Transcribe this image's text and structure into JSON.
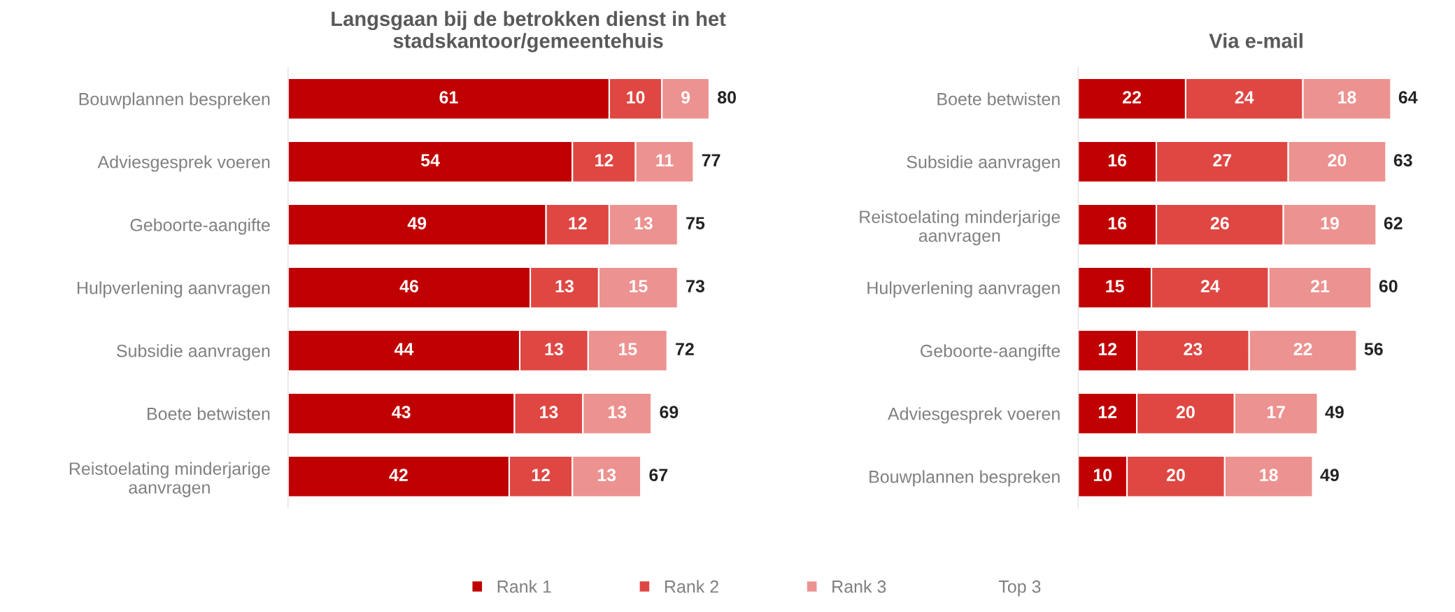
{
  "chart_data": [
    {
      "type": "bar",
      "orientation": "horizontal",
      "stacked": true,
      "title": "Langsgaan bij de betrokken dienst in het stadskantoor/gemeentehuis",
      "categories": [
        "Bouwplannen bespreken",
        "Adviesgesprek voeren",
        "Geboorte-aangifte",
        "Hulpverlening aanvragen",
        "Subsidie aanvragen",
        "Boete betwisten",
        "Reistoelating minderjarige aanvragen"
      ],
      "series": [
        {
          "name": "Rank 1",
          "color": "#c00000",
          "values": [
            61,
            54,
            49,
            46,
            44,
            43,
            42
          ]
        },
        {
          "name": "Rank 2",
          "color": "#df4743",
          "values": [
            10,
            12,
            12,
            13,
            13,
            13,
            12
          ]
        },
        {
          "name": "Rank 3",
          "color": "#ec9290",
          "values": [
            9,
            11,
            13,
            15,
            15,
            13,
            13
          ]
        }
      ],
      "totals": [
        "80",
        "77",
        "75",
        "73",
        "72",
        "69",
        "67"
      ],
      "data_labels": true,
      "tick_labels": "y",
      "grid": false,
      "legend": "bottom",
      "annotations": [
        "Top 3"
      ]
    },
    {
      "type": "bar",
      "orientation": "horizontal",
      "stacked": true,
      "title": "Via e-mail",
      "categories": [
        "Boete betwisten",
        "Subsidie aanvragen",
        "Reistoelating minderjarige aanvragen",
        "Hulpverlening aanvragen",
        "Geboorte-aangifte",
        "Adviesgesprek voeren",
        "Bouwplannen bespreken"
      ],
      "series": [
        {
          "color": "#c00000",
          "values": [
            22,
            16,
            16,
            15,
            12,
            12,
            10
          ]
        },
        {
          "color": "#df4743",
          "values": [
            24,
            27,
            26,
            24,
            23,
            20,
            20
          ]
        },
        {
          "color": "#ec9290",
          "values": [
            18,
            20,
            19,
            21,
            22,
            17,
            18
          ]
        }
      ],
      "totals": [
        "64",
        "63",
        "62",
        "60",
        "56",
        "49",
        "49"
      ],
      "data_labels": true,
      "tick_labels": "y",
      "grid": false
    }
  ]
}
